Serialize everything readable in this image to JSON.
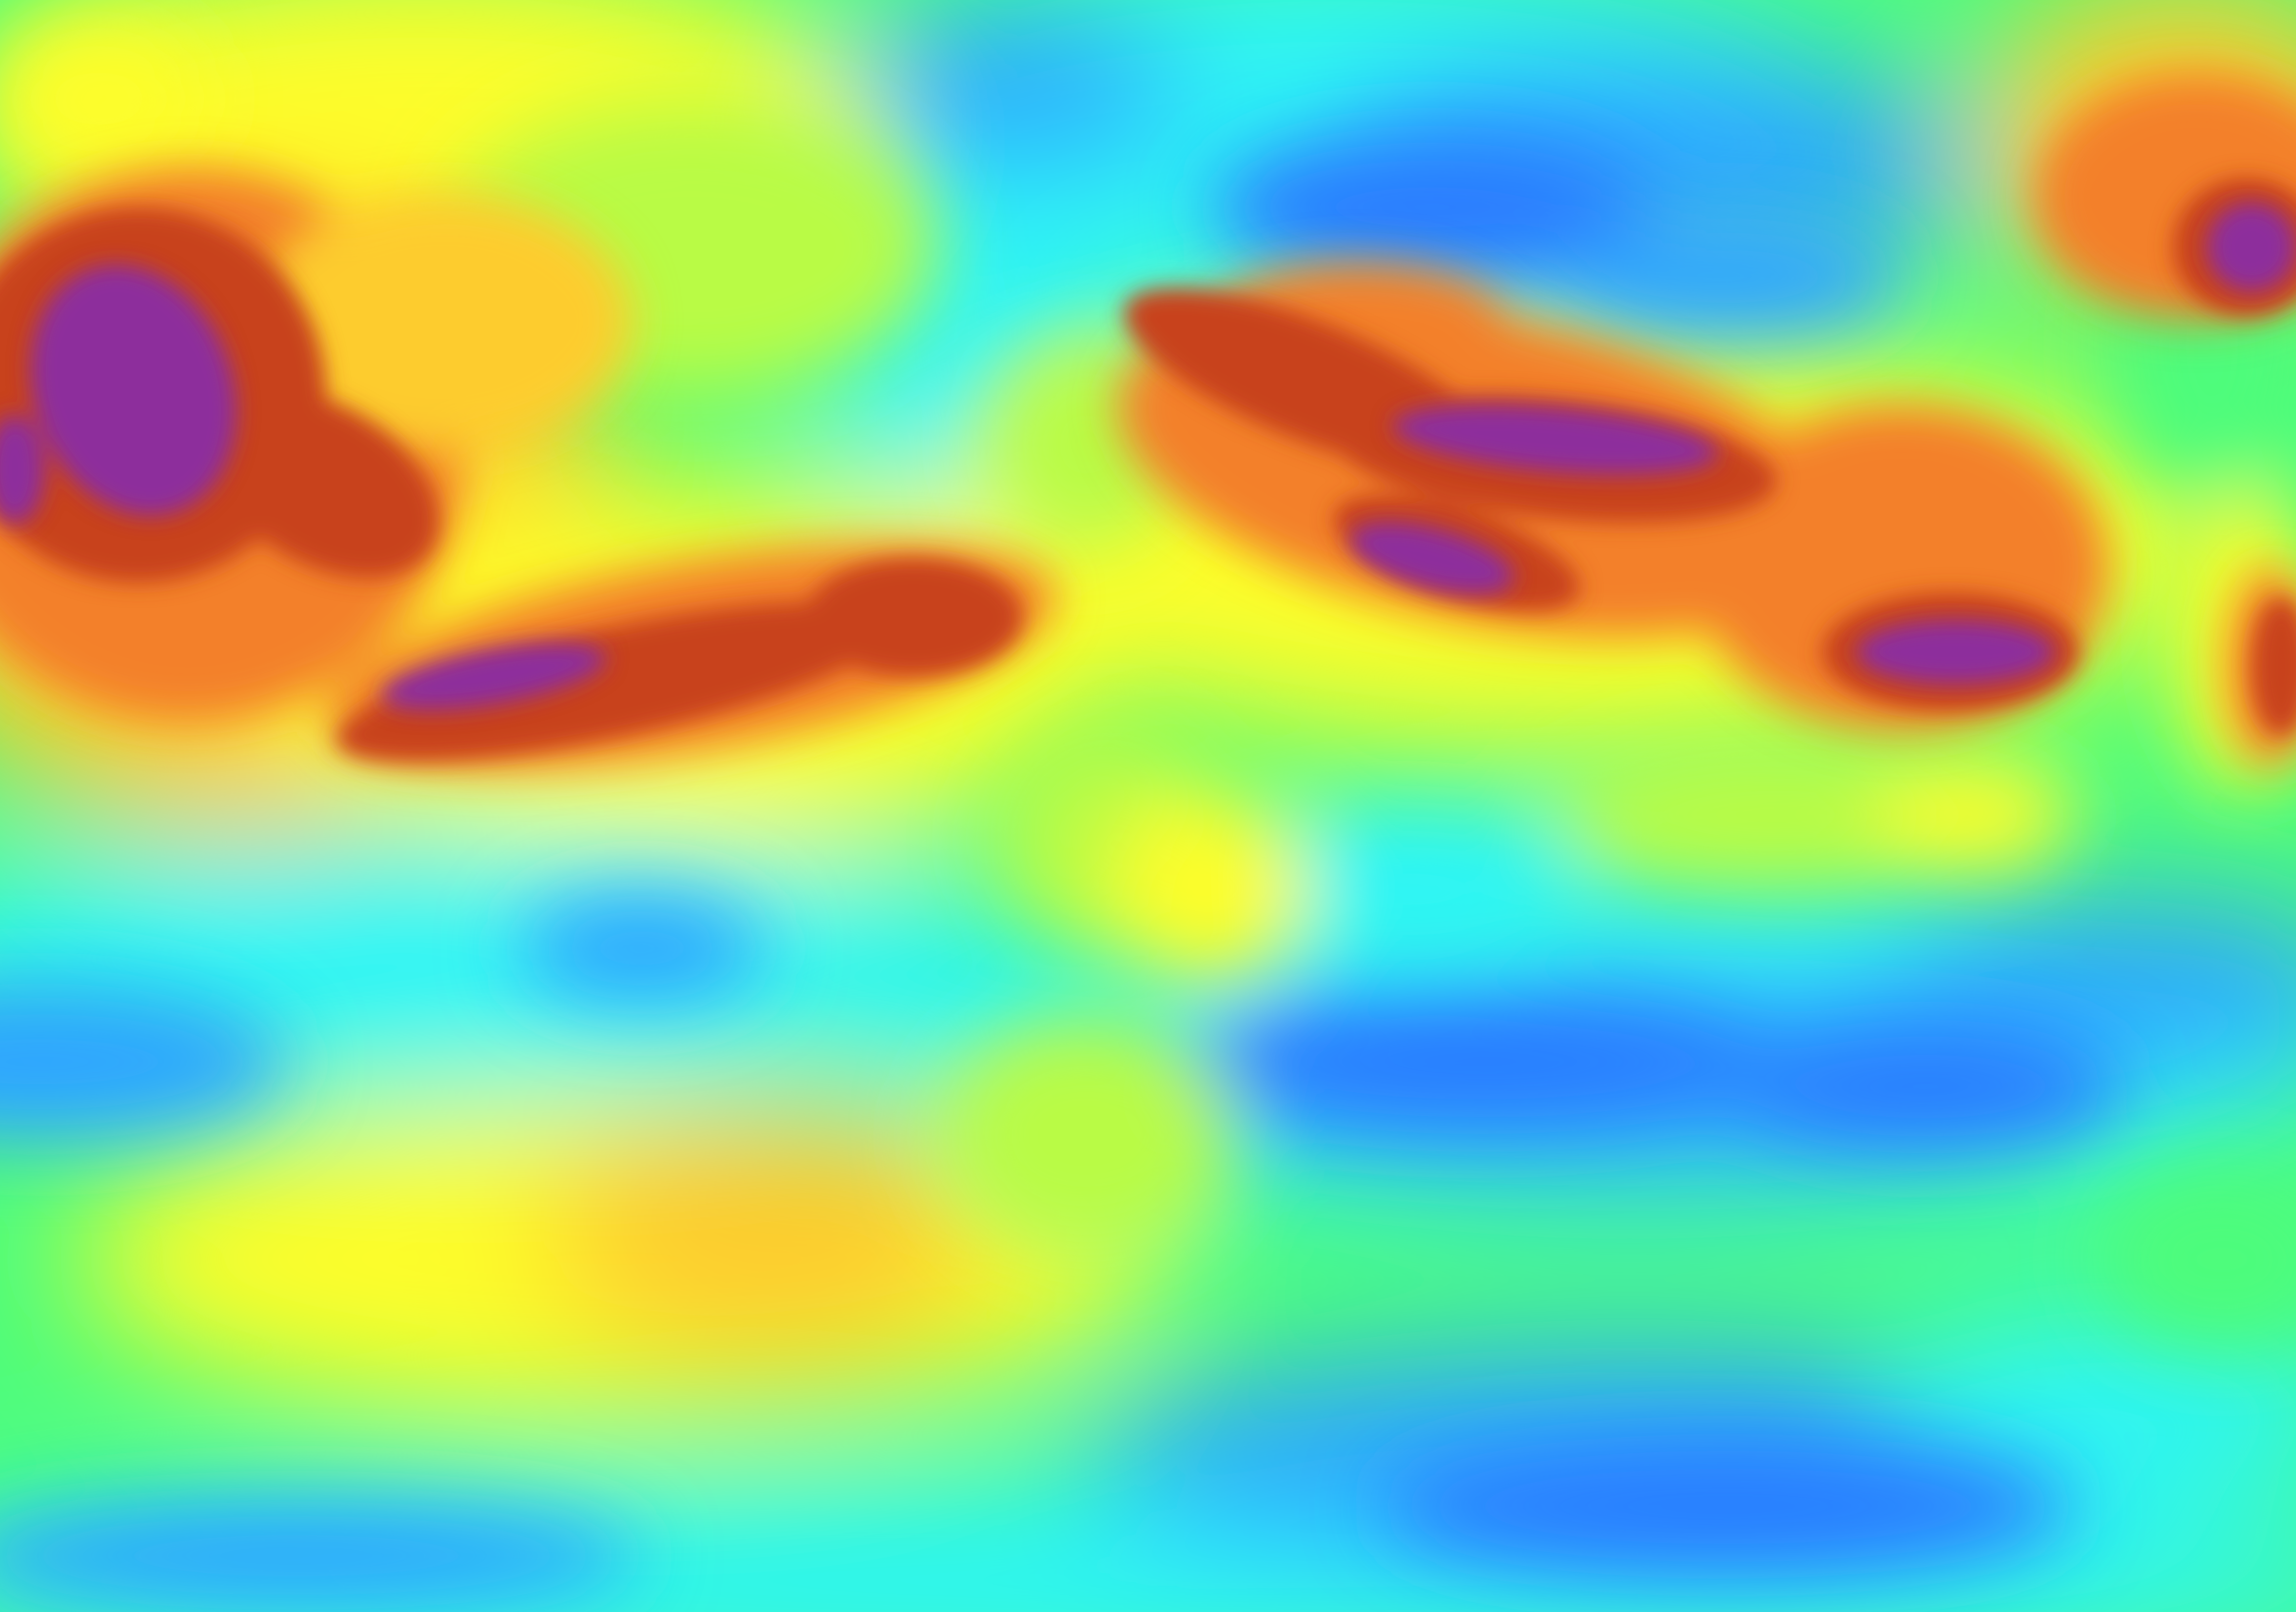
{
  "map": {
    "kind": "raster-heatmap",
    "legend_shown": false,
    "labels_shown": false,
    "colormap": [
      {
        "level": 0.0,
        "color": "#2a7dff"
      },
      {
        "level": 0.12,
        "color": "#2ea6ff"
      },
      {
        "level": 0.25,
        "color": "#2ef5f5"
      },
      {
        "level": 0.4,
        "color": "#4dfc7c"
      },
      {
        "level": 0.52,
        "color": "#b9fb45"
      },
      {
        "level": 0.62,
        "color": "#fdfd2c"
      },
      {
        "level": 0.72,
        "color": "#fdcc2e"
      },
      {
        "level": 0.82,
        "color": "#f3802a"
      },
      {
        "level": 0.9,
        "color": "#c8431f"
      },
      {
        "level": 0.96,
        "color": "#9a2e3a"
      },
      {
        "level": 1.0,
        "color": "#8d2f9c"
      }
    ]
  }
}
